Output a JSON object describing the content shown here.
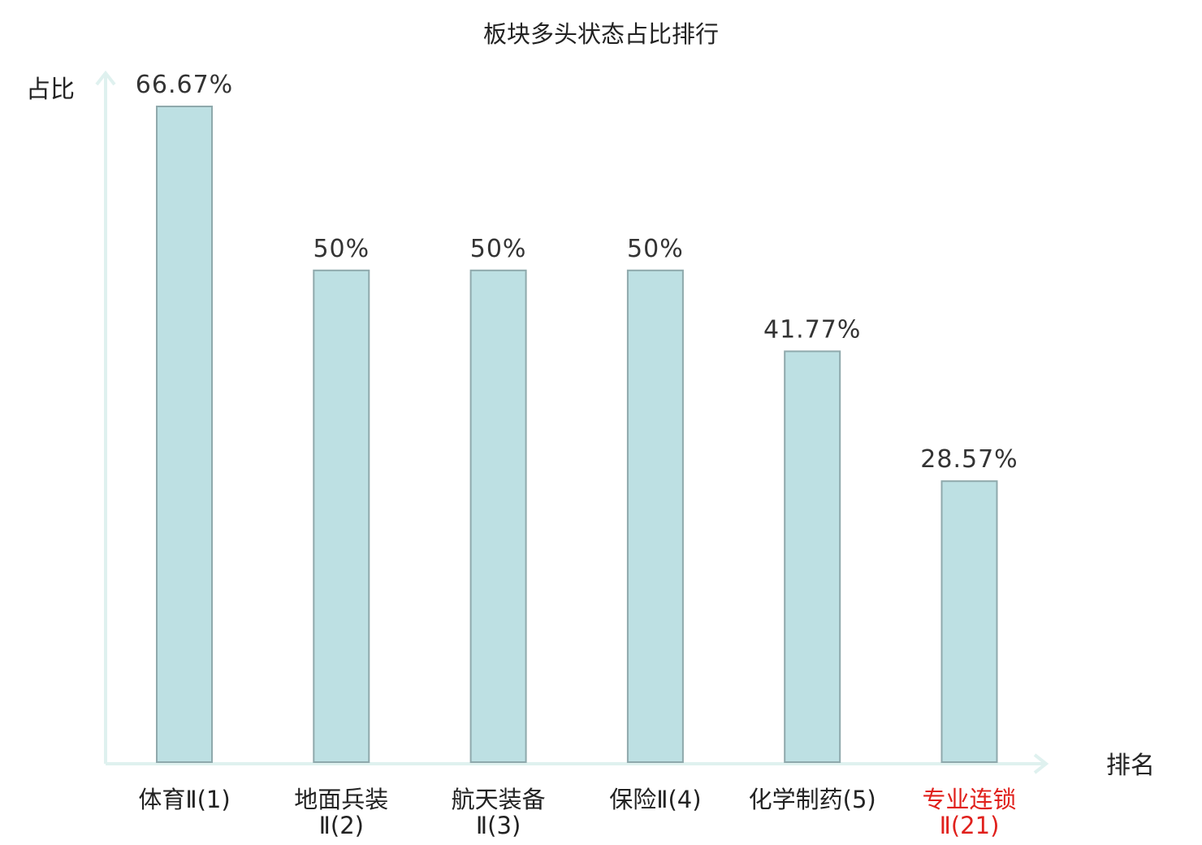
{
  "chart_data": {
    "type": "bar",
    "title": "板块多头状态占比排行",
    "ylabel": "占比",
    "xlabel": "排名",
    "ylim": [
      0,
      70
    ],
    "grid": false,
    "categories": [
      {
        "line1": "体育Ⅱ(1)",
        "line2": "",
        "highlight": false
      },
      {
        "line1": "地面兵装",
        "line2": "Ⅱ(2)",
        "highlight": false
      },
      {
        "line1": "航天装备",
        "line2": "Ⅱ(3)",
        "highlight": false
      },
      {
        "line1": "保险Ⅱ(4)",
        "line2": "",
        "highlight": false
      },
      {
        "line1": "化学制药(5)",
        "line2": "",
        "highlight": false
      },
      {
        "line1": "专业连锁",
        "line2": "Ⅱ(21)",
        "highlight": true
      }
    ],
    "values": [
      66.67,
      50,
      50,
      50,
      41.77,
      28.57
    ],
    "value_labels": [
      "66.67%",
      "50%",
      "50%",
      "50%",
      "41.77%",
      "28.57%"
    ]
  },
  "colors": {
    "bar_fill": "#bde0e3",
    "bar_stroke": "#8fa9ac",
    "axis": "#dff1ef",
    "text": "#222222",
    "highlight": "#e0201c"
  }
}
